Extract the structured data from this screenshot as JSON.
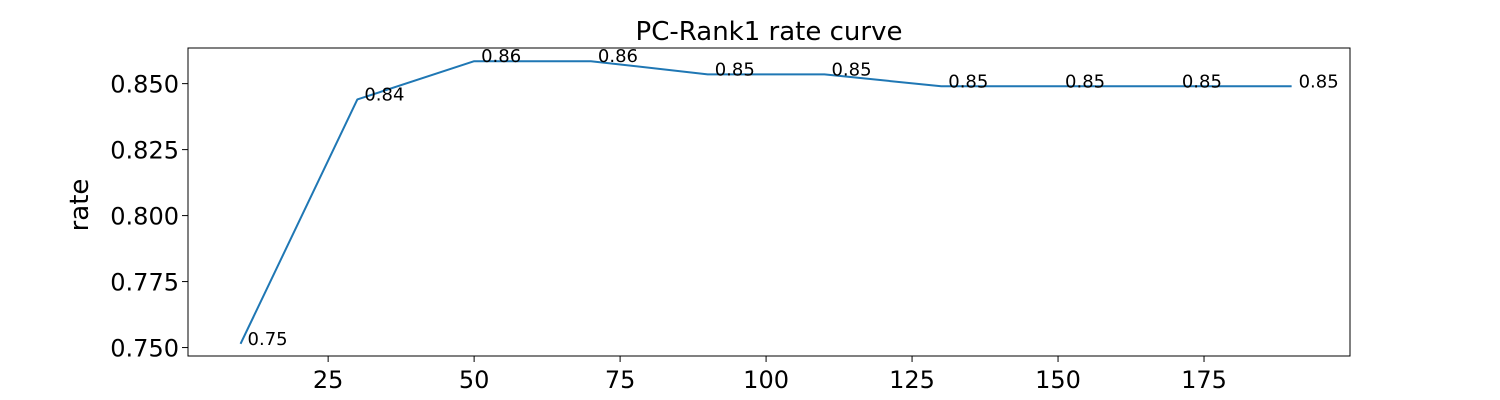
{
  "chart_data": {
    "type": "line",
    "title": "PC-Rank1 rate curve",
    "xlabel": "",
    "ylabel": "rate",
    "x": [
      10,
      30,
      50,
      70,
      90,
      110,
      130,
      150,
      170,
      190
    ],
    "series": [
      {
        "values": [
          0.7514,
          0.844,
          0.8585,
          0.8585,
          0.8535,
          0.8535,
          0.849,
          0.849,
          0.849,
          0.849
        ],
        "color": "#1f77b4"
      }
    ],
    "data_labels": [
      "0.75",
      "0.84",
      "0.86",
      "0.86",
      "0.85",
      "0.85",
      "0.85",
      "0.85",
      "0.85",
      "0.85"
    ],
    "xlim": [
      1,
      200
    ],
    "ylim": [
      0.7468,
      0.8635
    ],
    "xticks": [
      25,
      50,
      75,
      100,
      125,
      150,
      175
    ],
    "xtick_labels": [
      "25",
      "50",
      "75",
      "100",
      "125",
      "150",
      "175"
    ],
    "yticks": [
      0.75,
      0.775,
      0.8,
      0.825,
      0.85
    ],
    "ytick_labels": [
      "0.750",
      "0.775",
      "0.800",
      "0.825",
      "0.850"
    ],
    "grid": false,
    "legend": "none"
  }
}
